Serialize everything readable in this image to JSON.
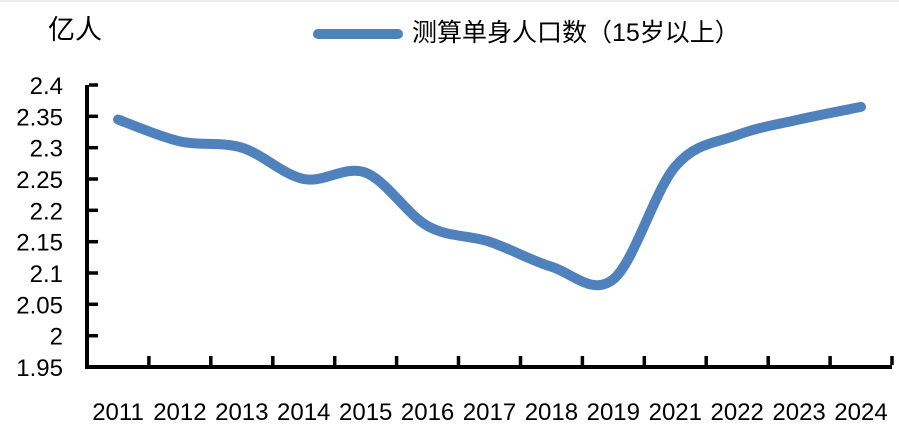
{
  "chart": {
    "unit_label": "亿人",
    "legend_label": "测算单身人口数（15岁以上）",
    "line_color": "#4F81BD",
    "axis_color": "#000000",
    "background_color": "#FFFFFF"
  },
  "chart_data": {
    "type": "line",
    "smooth": true,
    "title": "",
    "xlabel": "",
    "ylabel": "亿人",
    "categories": [
      "2011",
      "2012",
      "2013",
      "2014",
      "2015",
      "2016",
      "2017",
      "2018",
      "2019",
      "2021",
      "2022",
      "2023",
      "2024"
    ],
    "series": [
      {
        "name": "测算单身人口数（15岁以上）",
        "values": [
          2.345,
          2.31,
          2.3,
          2.25,
          2.26,
          2.175,
          2.15,
          2.11,
          2.09,
          2.27,
          2.32,
          2.345,
          2.365
        ]
      }
    ],
    "ylim": [
      1.95,
      2.4
    ],
    "y_ticks": [
      "2.4",
      "2.35",
      "2.3",
      "2.25",
      "2.2",
      "2.15",
      "2.1",
      "2.05",
      "2",
      "1.95"
    ],
    "grid": false,
    "legend_position": "top"
  }
}
